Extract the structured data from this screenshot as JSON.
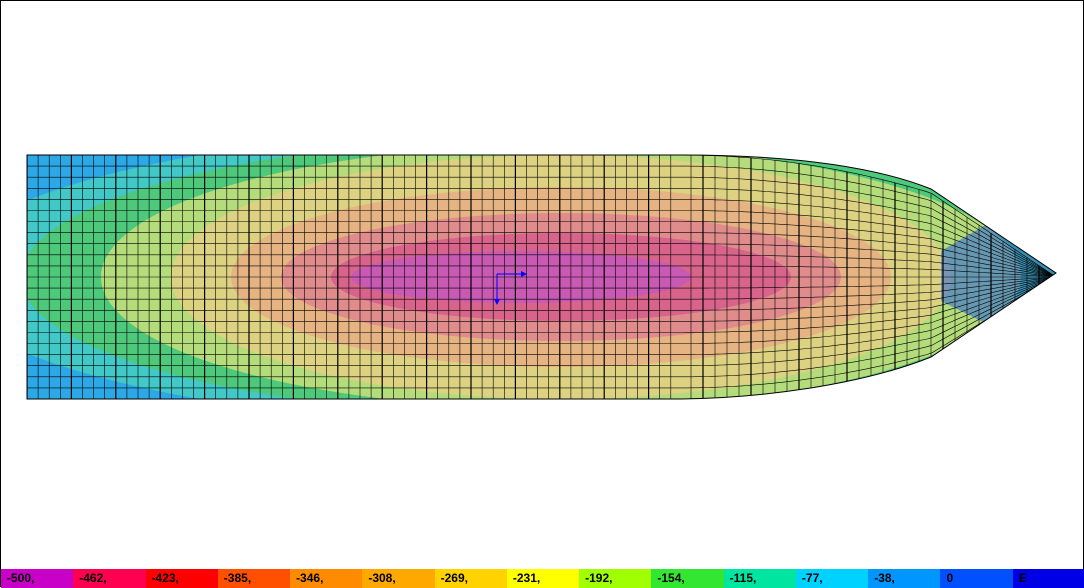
{
  "legend": {
    "labels": [
      "-500,",
      "-462,",
      "-423,",
      "-385,",
      "-346,",
      "-308,",
      "-269,",
      "-231,",
      "-192,",
      "-154,",
      "-115,",
      "-77,",
      "-38,",
      "0",
      "E"
    ],
    "colors": [
      "#c800c8",
      "#ff0050",
      "#ff0000",
      "#ff5000",
      "#ff8c00",
      "#ffa800",
      "#ffd200",
      "#ffff00",
      "#a0ff00",
      "#32e632",
      "#00e6a0",
      "#00d2ff",
      "#0096ff",
      "#0050ff",
      "#0000e6"
    ]
  },
  "plot": {
    "mesh_colors": {
      "outer": "#2da8e6",
      "band1": "#43c8c8",
      "band2": "#4ec87a",
      "band3": "#b4dc7a",
      "band4": "#dcd282",
      "band5": "#e6b482",
      "band6": "#e08c8c",
      "band7": "#d8648c",
      "band8": "#c85ab4",
      "nose": "#2860e0"
    },
    "axis_color": "#0000ff"
  }
}
